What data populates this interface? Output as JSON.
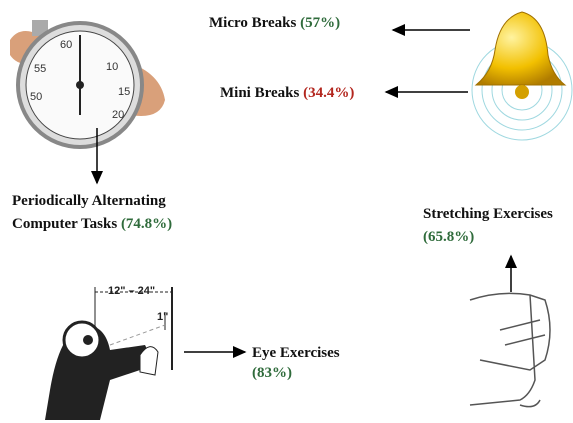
{
  "items": [
    {
      "label": "Micro Breaks",
      "share": "(57%)"
    },
    {
      "label": "Mini Breaks",
      "share": "(34.4%)"
    },
    {
      "label_lines": [
        "Periodically Alternating",
        "Computer Tasks"
      ],
      "share": "(74.8%)"
    },
    {
      "label": "Stretching Exercises",
      "share": "(65.8%)"
    },
    {
      "label": "Eye Exercises",
      "share": "(83%)"
    }
  ],
  "eye_figure": {
    "distance": "12\" – 24\"",
    "near": "1\""
  },
  "stopwatch": {
    "dial": [
      "60",
      "55",
      "10",
      "15",
      "20",
      "50"
    ]
  }
}
